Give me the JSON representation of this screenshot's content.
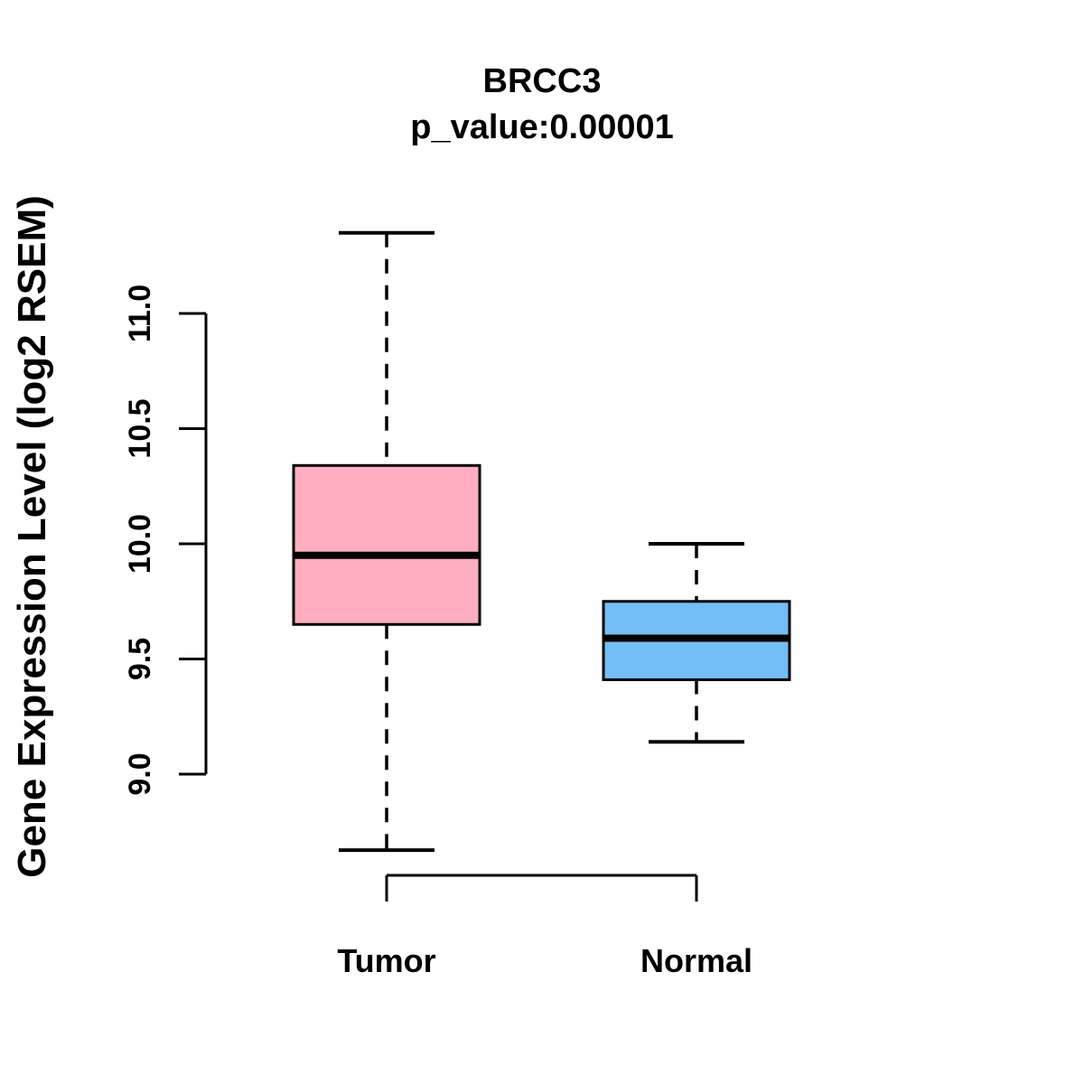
{
  "page": {
    "background_color": "#FFFFFF"
  },
  "chart_data": {
    "type": "boxplot",
    "title": "BRCC3",
    "subtitle": "p_value:0.00001",
    "ylabel": "Gene Expression Level (log2 RSEM)",
    "xlabel": "",
    "ylim": [
      8.6,
      11.4
    ],
    "yticks": [
      {
        "value": 9.0,
        "label": "9.0"
      },
      {
        "value": 9.5,
        "label": "9.5"
      },
      {
        "value": 10.0,
        "label": "10.0"
      },
      {
        "value": 10.5,
        "label": "10.5"
      },
      {
        "value": 11.0,
        "label": "11.0"
      }
    ],
    "grid": false,
    "legend_position": "none",
    "stroke_color": "#000000",
    "categories": [
      "Tumor",
      "Normal"
    ],
    "series": [
      {
        "name": "Tumor",
        "fill_color": "#FFAEC0",
        "stats": {
          "whisker_low": 8.67,
          "q1": 9.65,
          "median": 9.95,
          "q3": 10.34,
          "whisker_high": 11.35
        }
      },
      {
        "name": "Normal",
        "fill_color": "#73BEF5",
        "stats": {
          "whisker_low": 9.14,
          "q1": 9.41,
          "median": 9.59,
          "q3": 9.75,
          "whisker_high": 10.0
        }
      }
    ]
  }
}
